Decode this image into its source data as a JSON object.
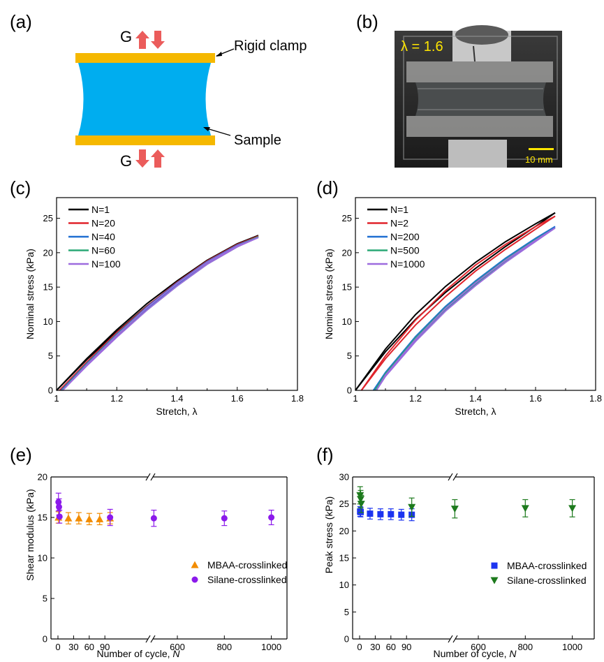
{
  "colors": {
    "clamp": "#f5b800",
    "sample": "#00adef",
    "arrow_red": "#e8403e",
    "photo_label": "#ffe600",
    "mbaa_e": "#f28c00",
    "silane_e": "#8b1aeb",
    "mbaa_f": "#1c34f0",
    "silane_f": "#1d7a1d"
  },
  "panel_a": {
    "label": "(a)",
    "g_top": "G",
    "g_bottom": "G",
    "rigid_clamp": "Rigid clamp",
    "sample": "Sample"
  },
  "panel_b": {
    "label": "(b)",
    "stretch_text": "λ = 1.6",
    "scale_bar": "10 mm"
  },
  "chart_data": [
    {
      "id": "c",
      "type": "line",
      "panel_label": "(c)",
      "xlabel": "Stretch, λ",
      "ylabel": "Nominal stress (kPa)",
      "xlim": [
        1.0,
        1.8
      ],
      "ylim": [
        0,
        28
      ],
      "x_ticks": [
        "1",
        "1.2",
        "1.4",
        "1.6",
        "1.8"
      ],
      "y_ticks": [
        "0",
        "5",
        "10",
        "15",
        "20",
        "25"
      ],
      "legend_position": "top-left",
      "series": [
        {
          "name": "N=1",
          "color": "#000000",
          "x": [
            1.0,
            1.1,
            1.2,
            1.3,
            1.4,
            1.5,
            1.6,
            1.67
          ],
          "y": [
            0,
            4.6,
            8.8,
            12.6,
            15.9,
            18.9,
            21.3,
            22.5
          ]
        },
        {
          "name": "N=20",
          "color": "#e0242b",
          "x": [
            1.01,
            1.1,
            1.2,
            1.3,
            1.4,
            1.5,
            1.6,
            1.67
          ],
          "y": [
            0,
            4.1,
            8.4,
            12.2,
            15.7,
            18.8,
            21.2,
            22.4
          ]
        },
        {
          "name": "N=40",
          "color": "#1f6fd1",
          "x": [
            1.015,
            1.1,
            1.2,
            1.3,
            1.4,
            1.5,
            1.6,
            1.67
          ],
          "y": [
            0,
            3.9,
            8.2,
            12.1,
            15.6,
            18.7,
            21.1,
            22.3
          ]
        },
        {
          "name": "N=60",
          "color": "#2aa876",
          "x": [
            1.018,
            1.1,
            1.2,
            1.3,
            1.4,
            1.5,
            1.6,
            1.67
          ],
          "y": [
            0,
            3.8,
            8.1,
            12.0,
            15.5,
            18.6,
            21.0,
            22.3
          ]
        },
        {
          "name": "N=100",
          "color": "#9d6bde",
          "x": [
            1.02,
            1.1,
            1.2,
            1.3,
            1.4,
            1.5,
            1.6,
            1.67
          ],
          "y": [
            0,
            3.7,
            8.0,
            12.0,
            15.5,
            18.6,
            21.0,
            22.2
          ]
        }
      ]
    },
    {
      "id": "d",
      "type": "line",
      "panel_label": "(d)",
      "xlabel": "Stretch, λ",
      "ylabel": "Nominal stress (kPa)",
      "xlim": [
        1.0,
        1.8
      ],
      "ylim": [
        0,
        28
      ],
      "x_ticks": [
        "1",
        "1.2",
        "1.4",
        "1.6",
        "1.8"
      ],
      "y_ticks": [
        "0",
        "5",
        "10",
        "15",
        "20",
        "25"
      ],
      "legend_position": "top-left",
      "series": [
        {
          "name": "N=1",
          "color": "#000000",
          "x": [
            1.0,
            1.1,
            1.2,
            1.3,
            1.4,
            1.5,
            1.6,
            1.665
          ],
          "y": [
            0,
            6.0,
            11.0,
            15.1,
            18.6,
            21.6,
            24.2,
            25.8
          ]
        },
        {
          "name": "N=2",
          "color": "#e0242b",
          "x": [
            1.02,
            1.1,
            1.2,
            1.3,
            1.4,
            1.5,
            1.6,
            1.665
          ],
          "y": [
            0,
            5.0,
            10.2,
            14.5,
            18.2,
            21.2,
            23.8,
            25.3
          ]
        },
        {
          "name": "N=200",
          "color": "#1f6fd1",
          "x": [
            1.06,
            1.1,
            1.2,
            1.3,
            1.4,
            1.5,
            1.6,
            1.665
          ],
          "y": [
            0,
            2.6,
            7.8,
            12.2,
            15.9,
            19.2,
            22.1,
            23.8
          ]
        },
        {
          "name": "N=500",
          "color": "#2aa876",
          "x": [
            1.065,
            1.1,
            1.2,
            1.3,
            1.4,
            1.5,
            1.6,
            1.665
          ],
          "y": [
            0,
            2.4,
            7.6,
            12.0,
            15.7,
            19.0,
            21.9,
            23.6
          ]
        },
        {
          "name": "N=1000",
          "color": "#9d6bde",
          "x": [
            1.07,
            1.1,
            1.2,
            1.3,
            1.4,
            1.5,
            1.6,
            1.665
          ],
          "y": [
            0,
            2.2,
            7.4,
            11.9,
            15.6,
            18.9,
            21.8,
            23.6
          ]
        }
      ]
    },
    {
      "id": "e",
      "type": "scatter",
      "panel_label": "(e)",
      "xlabel_text": "Number of cycle, ",
      "xlabel_var": "N",
      "ylabel": "Shear modulus (kPa)",
      "axis_break": true,
      "ylim": [
        0,
        20
      ],
      "y_ticks": [
        "0",
        "5",
        "10",
        "15",
        "20"
      ],
      "x_ticks_left": [
        "0",
        "30",
        "60",
        "90"
      ],
      "x_ticks_right": [
        "600",
        "800",
        "1000"
      ],
      "legend_position": "bottom-right",
      "series": [
        {
          "name": "MBAA-crosslinked",
          "marker": "triangle-up",
          "color": "#f28c00",
          "x": [
            1,
            20,
            40,
            60,
            80,
            100
          ],
          "y": [
            15.0,
            14.9,
            14.9,
            14.8,
            14.8,
            14.9
          ],
          "err": [
            0.7,
            0.7,
            0.7,
            0.7,
            0.7,
            0.7
          ]
        },
        {
          "name": "Silane-crosslinked",
          "marker": "circle",
          "color": "#8b1aeb",
          "x": [
            1,
            2,
            3,
            100,
            500,
            800,
            1000
          ],
          "y": [
            16.9,
            16.3,
            15.1,
            15.0,
            14.9,
            14.9,
            15.0
          ],
          "err": [
            1.1,
            1.0,
            0.8,
            1.0,
            1.0,
            0.9,
            0.9
          ]
        }
      ]
    },
    {
      "id": "f",
      "type": "scatter",
      "panel_label": "(f)",
      "xlabel_text": "Number of cycle, ",
      "xlabel_var": "N",
      "ylabel": "Peak stress (kPa)",
      "axis_break": true,
      "ylim": [
        0,
        30
      ],
      "y_ticks": [
        "0",
        "5",
        "10",
        "15",
        "20",
        "25",
        "30"
      ],
      "x_ticks_left": [
        "0",
        "30",
        "60",
        "90"
      ],
      "x_ticks_right": [
        "600",
        "800",
        "1000"
      ],
      "legend_position": "bottom-right",
      "series": [
        {
          "name": "MBAA-crosslinked",
          "marker": "square",
          "color": "#1c34f0",
          "x": [
            1,
            2,
            20,
            40,
            60,
            80,
            100
          ],
          "y": [
            23.6,
            23.5,
            23.2,
            23.1,
            23.1,
            23.0,
            23.0
          ],
          "err": [
            0.9,
            0.9,
            1.0,
            1.0,
            1.0,
            1.0,
            1.1
          ]
        },
        {
          "name": "Silane-crosslinked",
          "marker": "triangle-down",
          "color": "#1d7a1d",
          "x": [
            1,
            2,
            3,
            100,
            500,
            800,
            1000
          ],
          "y": [
            26.6,
            25.9,
            25.0,
            24.4,
            24.1,
            24.2,
            24.2
          ],
          "err": [
            1.6,
            1.6,
            1.6,
            1.7,
            1.7,
            1.6,
            1.6
          ]
        }
      ]
    }
  ]
}
